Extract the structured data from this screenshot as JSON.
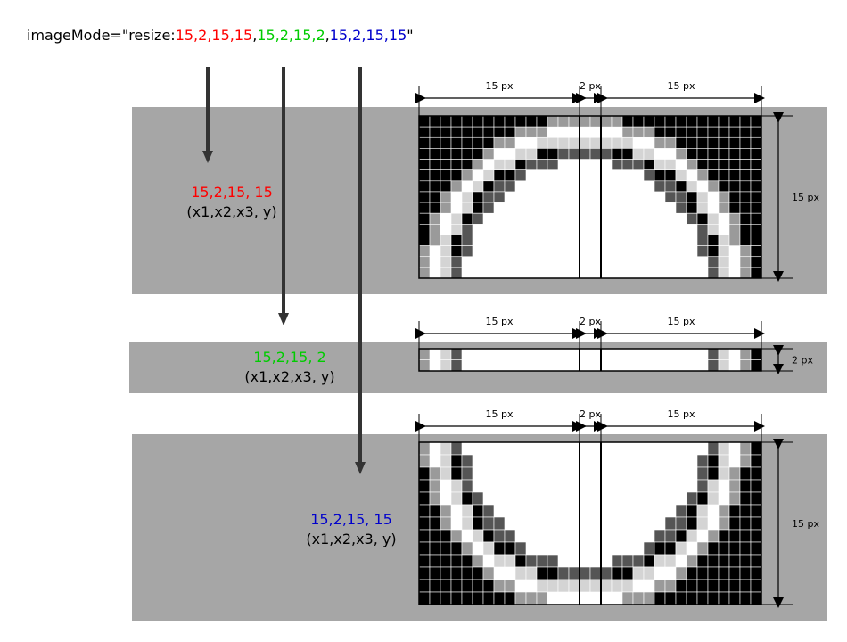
{
  "header": {
    "prefix": "imageMode=\"resize:",
    "groups": [
      {
        "text": "15,2,15,15",
        "color": "#ff0000"
      },
      {
        "text": "15,2,15,2",
        "color": "#00cc00"
      },
      {
        "text": "15,2,15,15",
        "color": "#0000cc"
      }
    ],
    "separator": ",",
    "suffix": "\""
  },
  "sections": [
    {
      "id": "top",
      "params": "15,2,15,  15",
      "params_color": "#ff0000",
      "vars": "(x1,x2,x3,  y)",
      "labels": {
        "x1": "15 px",
        "x2": "2 px",
        "x3": "15 px",
        "y": "15 px"
      }
    },
    {
      "id": "middle",
      "params": "15,2,15,  2",
      "params_color": "#00cc00",
      "vars": "(x1,x2,x3,  y)",
      "labels": {
        "x1": "15 px",
        "x2": "2 px",
        "x3": "15 px",
        "y": "2 px"
      }
    },
    {
      "id": "bottom",
      "params": "15,2,15,  15",
      "params_color": "#0000cc",
      "vars": "(x1,x2,x3,  y)",
      "labels": {
        "x1": "15 px",
        "x2": "2 px",
        "x3": "15 px",
        "y": "15 px"
      }
    }
  ],
  "colors": {
    "band": "#a6a6a6",
    "arrow": "#333333",
    "pixel_black": "#000000",
    "pixel_dark": "#555555",
    "pixel_mid": "#9a9a9a",
    "pixel_light": "#d4d4d4",
    "pixel_white": "#ffffff"
  }
}
